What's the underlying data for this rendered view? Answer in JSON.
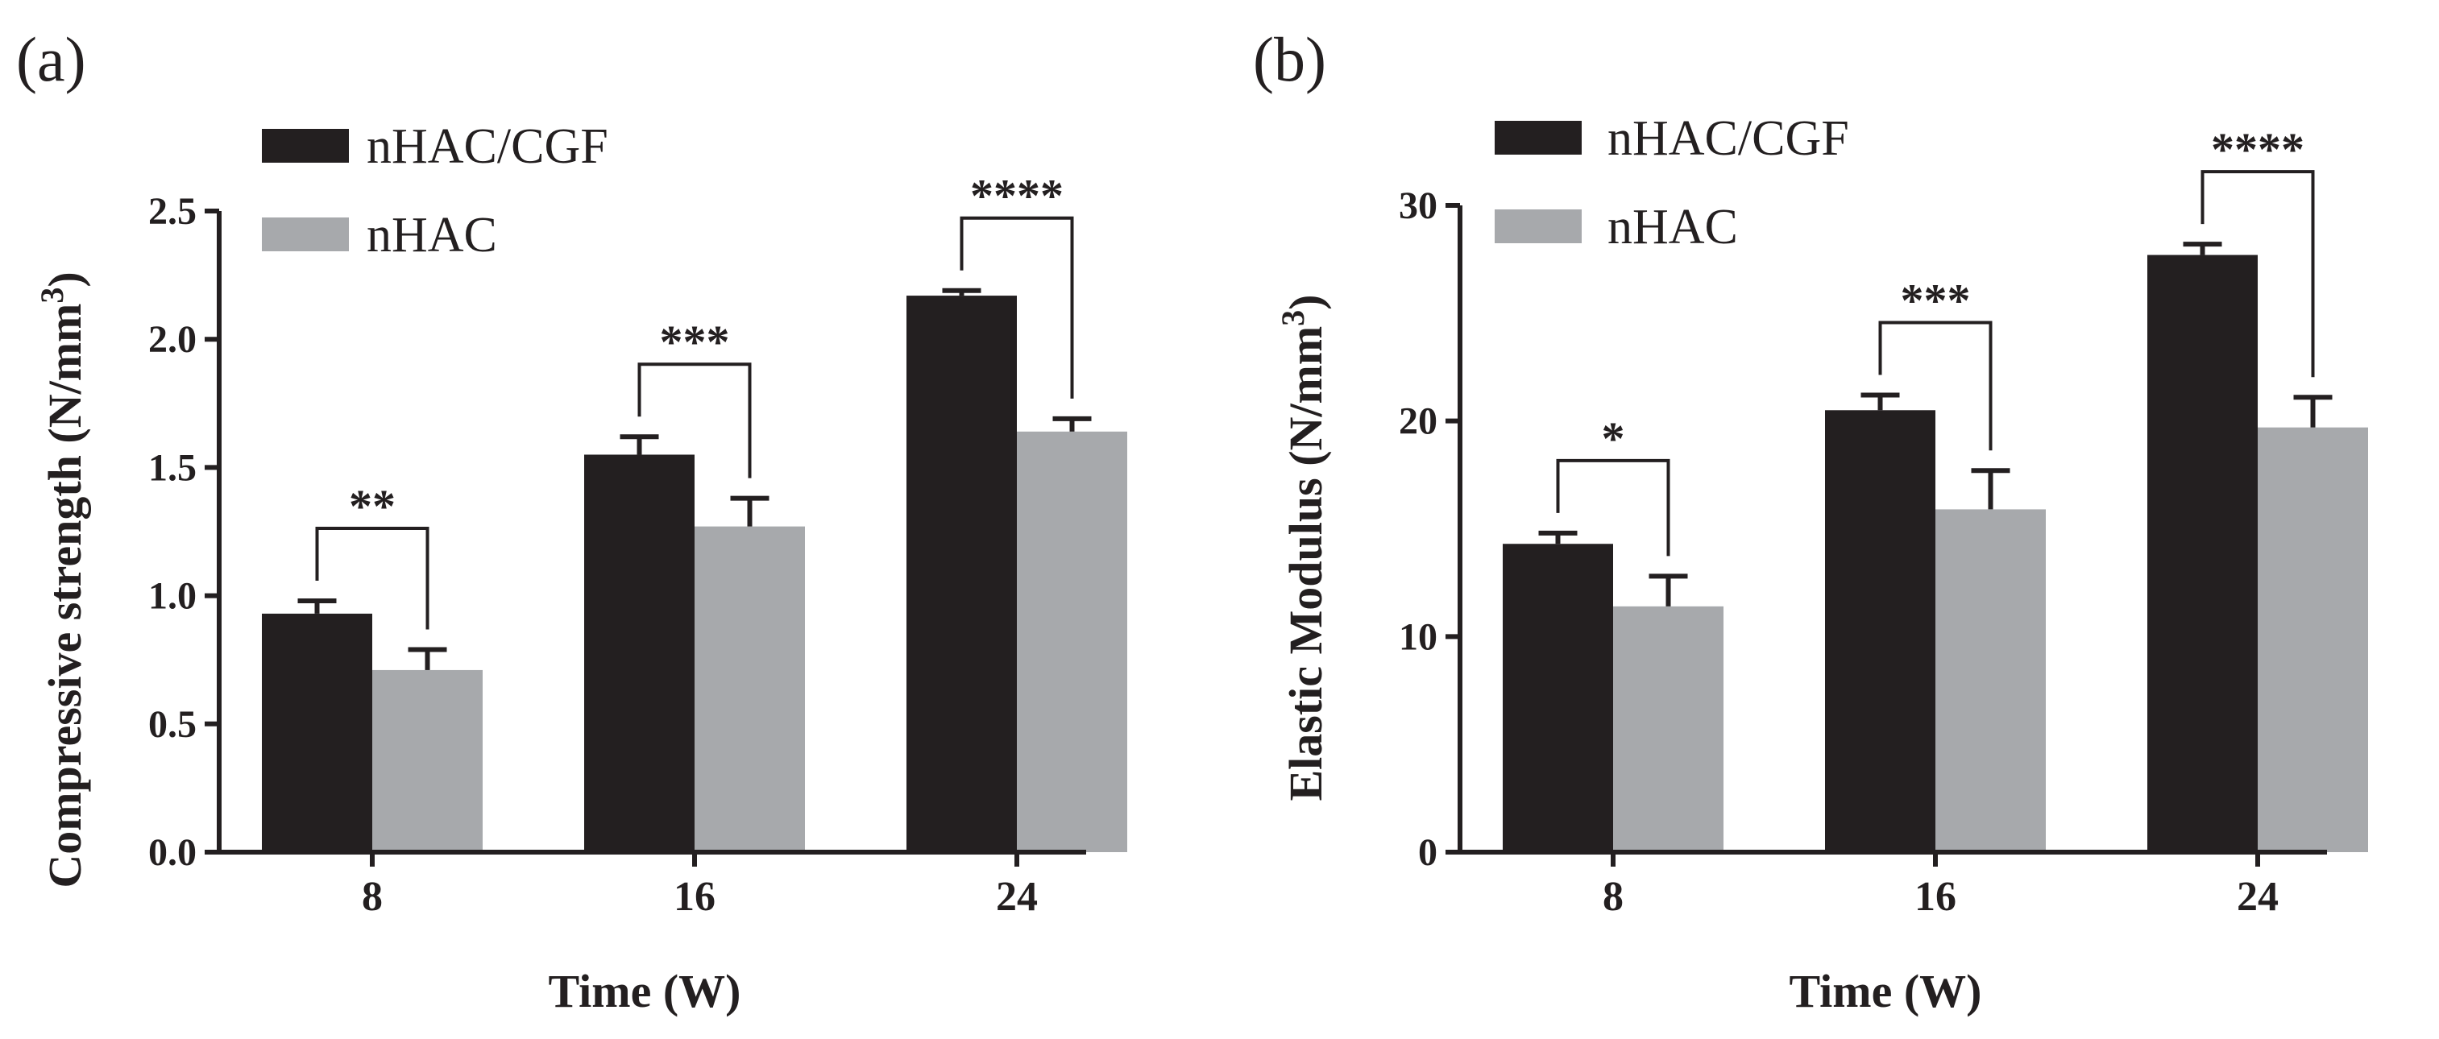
{
  "colors": {
    "nHAC_CGF": "#231f20",
    "nHAC": "#a7a9ac",
    "axis": "#231f20"
  },
  "chart_data": [
    {
      "panel": "(a)",
      "type": "bar",
      "xlabel": "Time (W)",
      "ylabel": "Compressive strength (N/mm",
      "ylabel_sup": "3",
      "ylabel_close": ")",
      "categories": [
        "8",
        "16",
        "24"
      ],
      "ylim": [
        0,
        2.5
      ],
      "yticks": [
        "0.0",
        "0.5",
        "1.0",
        "1.5",
        "2.0",
        "2.5"
      ],
      "ytick_values": [
        0,
        0.5,
        1.0,
        1.5,
        2.0,
        2.5
      ],
      "series": [
        {
          "name": "nHAC/CGF",
          "values": [
            0.93,
            1.55,
            2.17
          ],
          "errors": [
            0.05,
            0.07,
            0.02
          ]
        },
        {
          "name": "nHAC",
          "values": [
            0.71,
            1.27,
            1.64
          ],
          "errors": [
            0.08,
            0.11,
            0.05
          ]
        }
      ],
      "significance": [
        "**",
        "***",
        "****"
      ],
      "legend": [
        "nHAC/CGF",
        "nHAC"
      ]
    },
    {
      "panel": "(b)",
      "type": "bar",
      "xlabel": "Time (W)",
      "ylabel": "Elastic Modulus (N/mm",
      "ylabel_sup": "3",
      "ylabel_close": ")",
      "categories": [
        "8",
        "16",
        "24"
      ],
      "ylim": [
        0,
        30
      ],
      "yticks": [
        "0",
        "10",
        "20",
        "30"
      ],
      "ytick_values": [
        0,
        10,
        20,
        30
      ],
      "series": [
        {
          "name": "nHAC/CGF",
          "values": [
            14.3,
            20.5,
            27.7
          ],
          "errors": [
            0.5,
            0.7,
            0.5
          ]
        },
        {
          "name": "nHAC",
          "values": [
            11.4,
            15.9,
            19.7
          ],
          "errors": [
            1.4,
            1.8,
            1.4
          ]
        }
      ],
      "significance": [
        "*",
        "***",
        "****"
      ],
      "legend": [
        "nHAC/CGF",
        "nHAC"
      ]
    }
  ]
}
